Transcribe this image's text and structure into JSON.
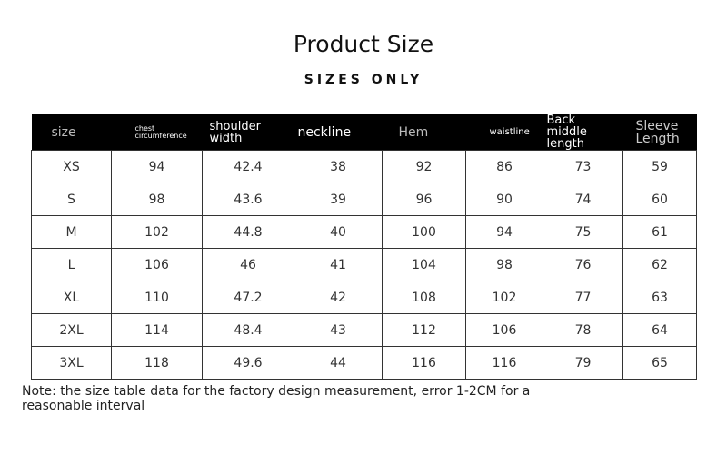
{
  "header": {
    "title": "Product Size",
    "subtitle": "SIZES ONLY"
  },
  "table": {
    "columns": [
      "size",
      "chest circumference",
      "shoulder width",
      "neckline",
      "Hem",
      "waistline",
      "Back middle length",
      "Sleeve Length"
    ],
    "rows": [
      [
        "XS",
        94,
        42.4,
        38,
        92,
        86,
        73,
        59
      ],
      [
        "S",
        98,
        43.6,
        39,
        96,
        90,
        74,
        60
      ],
      [
        "M",
        102,
        44.8,
        40,
        100,
        94,
        75,
        61
      ],
      [
        "L",
        106,
        46,
        41,
        104,
        98,
        76,
        62
      ],
      [
        "XL",
        110,
        47.2,
        42,
        108,
        102,
        77,
        63
      ],
      [
        "2XL",
        114,
        48.4,
        43,
        112,
        106,
        78,
        64
      ],
      [
        "3XL",
        118,
        49.6,
        44,
        116,
        116,
        79,
        65
      ]
    ]
  },
  "note": "Note: the size table data for the factory design measurement, error 1-2CM for a reasonable interval"
}
